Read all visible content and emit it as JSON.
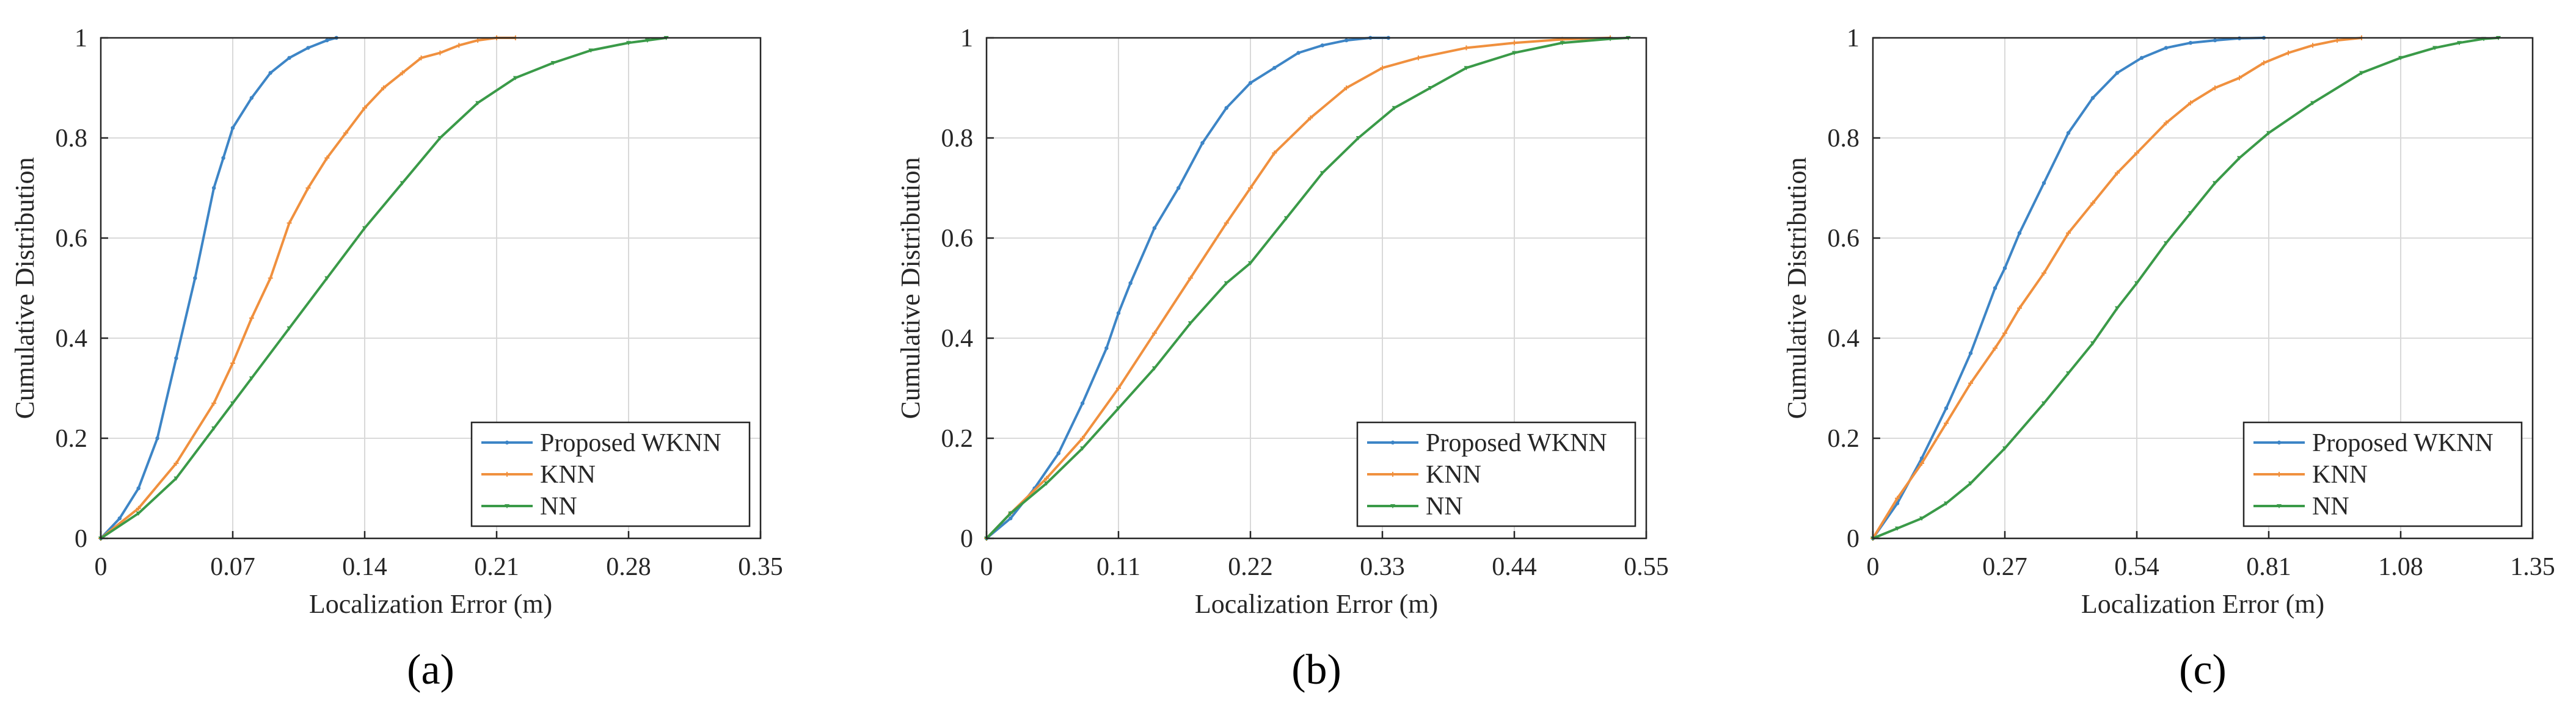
{
  "colors": {
    "wknn": "#3d85c6",
    "knn": "#f0903e",
    "nn": "#3a9a48",
    "grid": "#d9d9d9",
    "axis": "#262626"
  },
  "chart_data": [
    {
      "panel": "(a)",
      "type": "line",
      "xlabel": "Localization Error (m)",
      "ylabel": "Cumulative Distribution",
      "xlim": [
        0,
        0.35
      ],
      "ylim": [
        0,
        1
      ],
      "xticks": [
        "0",
        "0.07",
        "0.14",
        "0.21",
        "0.28",
        "0.35"
      ],
      "yticks": [
        "0",
        "0.2",
        "0.4",
        "0.6",
        "0.8",
        "1"
      ],
      "legend_position": "bottom-right",
      "legend": [
        "Proposed WKNN",
        "KNN",
        "NN"
      ],
      "series": [
        {
          "name": "Proposed WKNN",
          "x": [
            0,
            0.01,
            0.02,
            0.03,
            0.04,
            0.05,
            0.06,
            0.065,
            0.07,
            0.08,
            0.09,
            0.1,
            0.11,
            0.12,
            0.125
          ],
          "y": [
            0,
            0.04,
            0.1,
            0.2,
            0.36,
            0.52,
            0.7,
            0.76,
            0.82,
            0.88,
            0.93,
            0.96,
            0.98,
            0.995,
            1.0
          ]
        },
        {
          "name": "KNN",
          "x": [
            0,
            0.02,
            0.04,
            0.06,
            0.07,
            0.08,
            0.09,
            0.1,
            0.11,
            0.12,
            0.13,
            0.14,
            0.15,
            0.16,
            0.17,
            0.18,
            0.19,
            0.2,
            0.21,
            0.22
          ],
          "y": [
            0,
            0.06,
            0.15,
            0.27,
            0.35,
            0.44,
            0.52,
            0.63,
            0.7,
            0.76,
            0.81,
            0.86,
            0.9,
            0.93,
            0.96,
            0.97,
            0.985,
            0.995,
            1.0,
            1.0
          ]
        },
        {
          "name": "NN",
          "x": [
            0,
            0.02,
            0.04,
            0.06,
            0.07,
            0.08,
            0.1,
            0.12,
            0.14,
            0.16,
            0.18,
            0.2,
            0.22,
            0.24,
            0.26,
            0.28,
            0.29,
            0.3
          ],
          "y": [
            0,
            0.05,
            0.12,
            0.22,
            0.27,
            0.32,
            0.42,
            0.52,
            0.62,
            0.71,
            0.8,
            0.87,
            0.92,
            0.95,
            0.975,
            0.99,
            0.995,
            1.0
          ]
        }
      ]
    },
    {
      "panel": "(b)",
      "type": "line",
      "xlabel": "Localization Error (m)",
      "ylabel": "Cumulative Distribution",
      "xlim": [
        0,
        0.55
      ],
      "ylim": [
        0,
        1
      ],
      "xticks": [
        "0",
        "0.11",
        "0.22",
        "0.33",
        "0.44",
        "0.55"
      ],
      "yticks": [
        "0",
        "0.2",
        "0.4",
        "0.6",
        "0.8",
        "1"
      ],
      "legend_position": "bottom-right",
      "legend": [
        "Proposed WKNN",
        "KNN",
        "NN"
      ],
      "series": [
        {
          "name": "Proposed WKNN",
          "x": [
            0,
            0.02,
            0.04,
            0.06,
            0.08,
            0.1,
            0.11,
            0.12,
            0.14,
            0.16,
            0.18,
            0.2,
            0.22,
            0.24,
            0.26,
            0.28,
            0.3,
            0.32,
            0.335
          ],
          "y": [
            0,
            0.04,
            0.1,
            0.17,
            0.27,
            0.38,
            0.45,
            0.51,
            0.62,
            0.7,
            0.79,
            0.86,
            0.91,
            0.94,
            0.97,
            0.985,
            0.995,
            1.0,
            1.0
          ]
        },
        {
          "name": "KNN",
          "x": [
            0,
            0.02,
            0.05,
            0.08,
            0.11,
            0.14,
            0.17,
            0.2,
            0.22,
            0.24,
            0.27,
            0.3,
            0.33,
            0.36,
            0.4,
            0.44,
            0.48,
            0.52
          ],
          "y": [
            0,
            0.05,
            0.12,
            0.2,
            0.3,
            0.41,
            0.52,
            0.63,
            0.7,
            0.77,
            0.84,
            0.9,
            0.94,
            0.96,
            0.98,
            0.99,
            0.997,
            1.0
          ]
        },
        {
          "name": "NN",
          "x": [
            0,
            0.02,
            0.05,
            0.08,
            0.11,
            0.14,
            0.17,
            0.2,
            0.22,
            0.25,
            0.28,
            0.31,
            0.34,
            0.37,
            0.4,
            0.44,
            0.48,
            0.52,
            0.535
          ],
          "y": [
            0,
            0.05,
            0.11,
            0.18,
            0.26,
            0.34,
            0.43,
            0.51,
            0.55,
            0.64,
            0.73,
            0.8,
            0.86,
            0.9,
            0.94,
            0.97,
            0.99,
            0.998,
            1.0
          ]
        }
      ]
    },
    {
      "panel": "(c)",
      "type": "line",
      "xlabel": "Localization Error (m)",
      "ylabel": "Cumulative Distribution",
      "xlim": [
        0,
        1.35
      ],
      "ylim": [
        0,
        1
      ],
      "xticks": [
        "0",
        "0.27",
        "0.54",
        "0.81",
        "1.08",
        "1.35"
      ],
      "yticks": [
        "0",
        "0.2",
        "0.4",
        "0.6",
        "0.8",
        "1"
      ],
      "legend_position": "bottom-right",
      "legend": [
        "Proposed WKNN",
        "KNN",
        "NN"
      ],
      "series": [
        {
          "name": "Proposed WKNN",
          "x": [
            0,
            0.05,
            0.1,
            0.15,
            0.2,
            0.25,
            0.27,
            0.3,
            0.35,
            0.4,
            0.45,
            0.5,
            0.55,
            0.6,
            0.65,
            0.7,
            0.75,
            0.8
          ],
          "y": [
            0,
            0.07,
            0.16,
            0.26,
            0.37,
            0.5,
            0.54,
            0.61,
            0.71,
            0.81,
            0.88,
            0.93,
            0.96,
            0.98,
            0.99,
            0.995,
            0.999,
            1.0
          ]
        },
        {
          "name": "KNN",
          "x": [
            0,
            0.05,
            0.1,
            0.15,
            0.2,
            0.25,
            0.27,
            0.3,
            0.35,
            0.4,
            0.45,
            0.5,
            0.54,
            0.6,
            0.65,
            0.7,
            0.75,
            0.8,
            0.85,
            0.9,
            0.95,
            1.0
          ],
          "y": [
            0,
            0.08,
            0.15,
            0.23,
            0.31,
            0.38,
            0.41,
            0.46,
            0.53,
            0.61,
            0.67,
            0.73,
            0.77,
            0.83,
            0.87,
            0.9,
            0.92,
            0.95,
            0.97,
            0.985,
            0.995,
            1.0
          ]
        },
        {
          "name": "NN",
          "x": [
            0,
            0.05,
            0.1,
            0.15,
            0.2,
            0.27,
            0.35,
            0.4,
            0.45,
            0.5,
            0.54,
            0.6,
            0.65,
            0.7,
            0.75,
            0.81,
            0.9,
            1.0,
            1.08,
            1.15,
            1.2,
            1.25,
            1.28
          ],
          "y": [
            0,
            0.02,
            0.04,
            0.07,
            0.11,
            0.18,
            0.27,
            0.33,
            0.39,
            0.46,
            0.51,
            0.59,
            0.65,
            0.71,
            0.76,
            0.81,
            0.87,
            0.93,
            0.96,
            0.98,
            0.99,
            0.998,
            1.0
          ]
        }
      ]
    }
  ]
}
